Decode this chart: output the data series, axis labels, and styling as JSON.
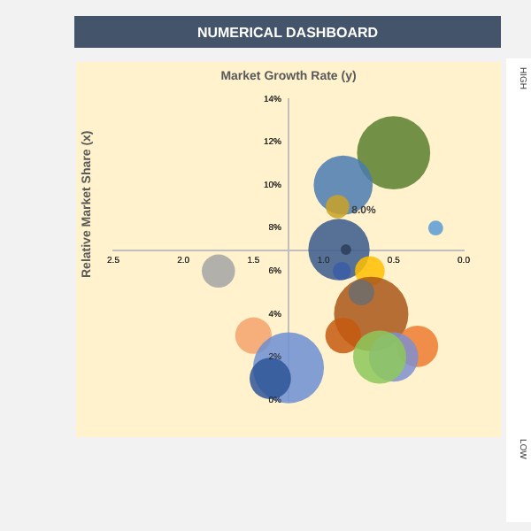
{
  "chart_data": {
    "type": "bubble",
    "title": "NUMERICAL DASHBOARD",
    "subtitle": "Market Growth Rate (y)",
    "ylabel": "Relative Market Share (x)",
    "x": [
      0.5,
      0.86,
      0.9,
      0.2,
      0.89,
      0.84,
      0.87,
      0.67,
      1.75,
      0.66,
      0.73,
      0.86,
      1.5,
      1.25,
      1.38,
      0.33,
      0.5,
      0.6
    ],
    "values": [
      11.5,
      10.0,
      9.0,
      8.0,
      7.0,
      7.0,
      6.0,
      6.0,
      6.0,
      4.0,
      5.0,
      3.0,
      3.0,
      1.5,
      1.0,
      2.5,
      2.0,
      2.0
    ],
    "sizes": [
      0.97,
      0.63,
      0.1,
      0.04,
      0.68,
      0.02,
      0.06,
      0.16,
      0.2,
      1,
      0.12,
      0.23,
      0.24,
      0.91,
      0.31,
      0.31,
      0.44,
      0.51
    ],
    "colors": [
      "#5b7f2f",
      "#4a7bb0",
      "#c9a227",
      "#5b9bd5",
      "#3a5a8c",
      "#2c3e5c",
      "#3b5ca8",
      "#ffc000",
      "#a5a5a5",
      "#a9571a",
      "#6d6d6d",
      "#c55a11",
      "#f4a26b",
      "#6d8fd4",
      "#2f5597",
      "#ed7d31",
      "#7f8fd0",
      "#8dc85a"
    ],
    "xlim": [
      2.5,
      0.0
    ],
    "xticks": [
      {
        "value": 2.5,
        "label": "2.5"
      },
      {
        "value": 2.0,
        "label": "2.0"
      },
      {
        "value": 1.5,
        "label": "1.5"
      },
      {
        "value": 1.0,
        "label": "1.0"
      },
      {
        "value": 0.5,
        "label": "0.5"
      },
      {
        "value": 0.0,
        "label": "0.0"
      }
    ],
    "ylim": [
      0,
      14
    ],
    "yticks": [
      {
        "value": 0,
        "label": "0%"
      },
      {
        "value": 2,
        "label": "2%"
      },
      {
        "value": 4,
        "label": "4%"
      },
      {
        "value": 6,
        "label": "6%"
      },
      {
        "value": 8,
        "label": "8%"
      },
      {
        "value": 10,
        "label": "10%"
      },
      {
        "value": 12,
        "label": "12%"
      },
      {
        "value": 14,
        "label": "14%"
      }
    ],
    "annotations": [
      {
        "text": "8.0%",
        "x": 0.8,
        "y": 8.7
      },
      "HIGH",
      "LOW"
    ],
    "grid": false,
    "legend": false
  }
}
